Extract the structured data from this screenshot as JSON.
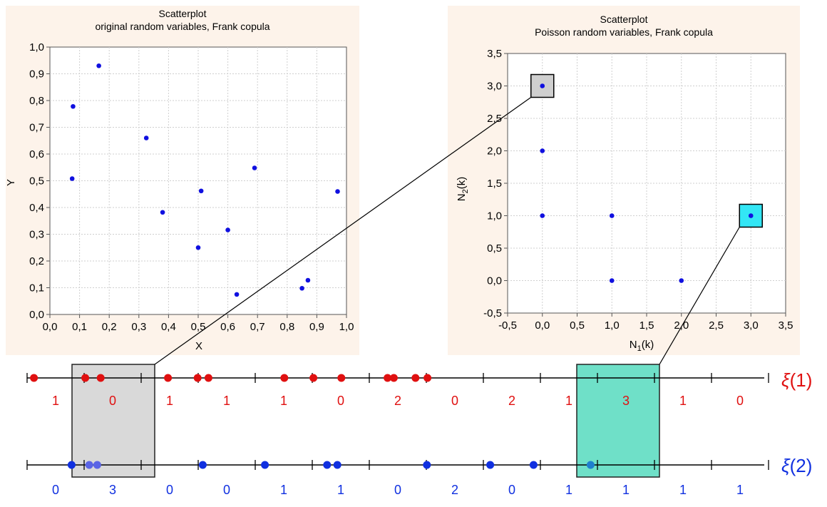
{
  "chart_data": [
    {
      "type": "scatter",
      "title": "Scatterplot",
      "subtitle": "original random variables, Frank copula",
      "xlabel": "X",
      "ylabel": "Y",
      "xlim": [
        0.0,
        1.0
      ],
      "ylim": [
        0.0,
        1.0
      ],
      "xticks": [
        "0,0",
        "0,1",
        "0,2",
        "0,3",
        "0,4",
        "0,5",
        "0,6",
        "0,7",
        "0,8",
        "0,9",
        "1,0"
      ],
      "yticks": [
        "0,0",
        "0,1",
        "0,2",
        "0,3",
        "0,4",
        "0,5",
        "0,6",
        "0,7",
        "0,8",
        "0,9",
        "1,0"
      ],
      "grid": true,
      "points": [
        {
          "x": 0.078,
          "y": 0.778
        },
        {
          "x": 0.075,
          "y": 0.508
        },
        {
          "x": 0.165,
          "y": 0.93
        },
        {
          "x": 0.325,
          "y": 0.66
        },
        {
          "x": 0.38,
          "y": 0.382
        },
        {
          "x": 0.5,
          "y": 0.25
        },
        {
          "x": 0.51,
          "y": 0.462
        },
        {
          "x": 0.6,
          "y": 0.316
        },
        {
          "x": 0.63,
          "y": 0.075
        },
        {
          "x": 0.69,
          "y": 0.548
        },
        {
          "x": 0.85,
          "y": 0.098
        },
        {
          "x": 0.87,
          "y": 0.128
        },
        {
          "x": 0.97,
          "y": 0.46
        }
      ]
    },
    {
      "type": "scatter",
      "title": "Scatterplot",
      "subtitle": "Poisson random variables, Frank copula",
      "xlabel_main": "N",
      "xlabel_sub": "1",
      "xlabel_tail": "(k)",
      "ylabel_main": "N",
      "ylabel_sub": "2",
      "ylabel_tail": "(k)",
      "xlim": [
        -0.5,
        3.5
      ],
      "ylim": [
        -0.5,
        3.5
      ],
      "xticks": [
        "-0,5",
        "0,0",
        "0,5",
        "1,0",
        "1,5",
        "2,0",
        "2,5",
        "3,0",
        "3,5"
      ],
      "yticks": [
        "-0,5",
        "0,0",
        "0,5",
        "1,0",
        "1,5",
        "2,0",
        "2,5",
        "3,0",
        "3,5"
      ],
      "grid": true,
      "points": [
        {
          "x": 0,
          "y": 3
        },
        {
          "x": 0,
          "y": 2
        },
        {
          "x": 0,
          "y": 1
        },
        {
          "x": 1,
          "y": 1
        },
        {
          "x": 1,
          "y": 0
        },
        {
          "x": 2,
          "y": 0
        },
        {
          "x": 3,
          "y": 1
        }
      ],
      "highlights": [
        {
          "x": 0,
          "y": 3,
          "color": "#cfcfcf"
        },
        {
          "x": 3,
          "y": 1,
          "color": "#33e6f5"
        }
      ]
    }
  ],
  "timelines": [
    {
      "label_main": "ξ",
      "label_tail": "(1)",
      "color": "#e01010",
      "events": [
        0.12,
        1.02,
        1.29,
        2.47,
        2.99,
        3.18,
        4.51,
        5.02,
        5.51,
        6.32,
        6.43,
        6.81,
        7.02
      ],
      "counts": [
        "1",
        "0",
        "1",
        "1",
        "1",
        "0",
        "2",
        "0",
        "2",
        "1",
        "3",
        "1",
        "0"
      ]
    },
    {
      "label_main": "ξ",
      "label_tail": "(2)",
      "color": "#1030e0",
      "events": [
        0.78,
        1.09,
        1.23,
        3.08,
        4.17,
        5.26,
        5.44,
        7.01,
        8.12,
        8.88,
        9.88
      ],
      "counts": [
        "0",
        "3",
        "0",
        "0",
        "1",
        "1",
        "0",
        "2",
        "0",
        "1",
        "1",
        "1",
        "1"
      ]
    }
  ]
}
